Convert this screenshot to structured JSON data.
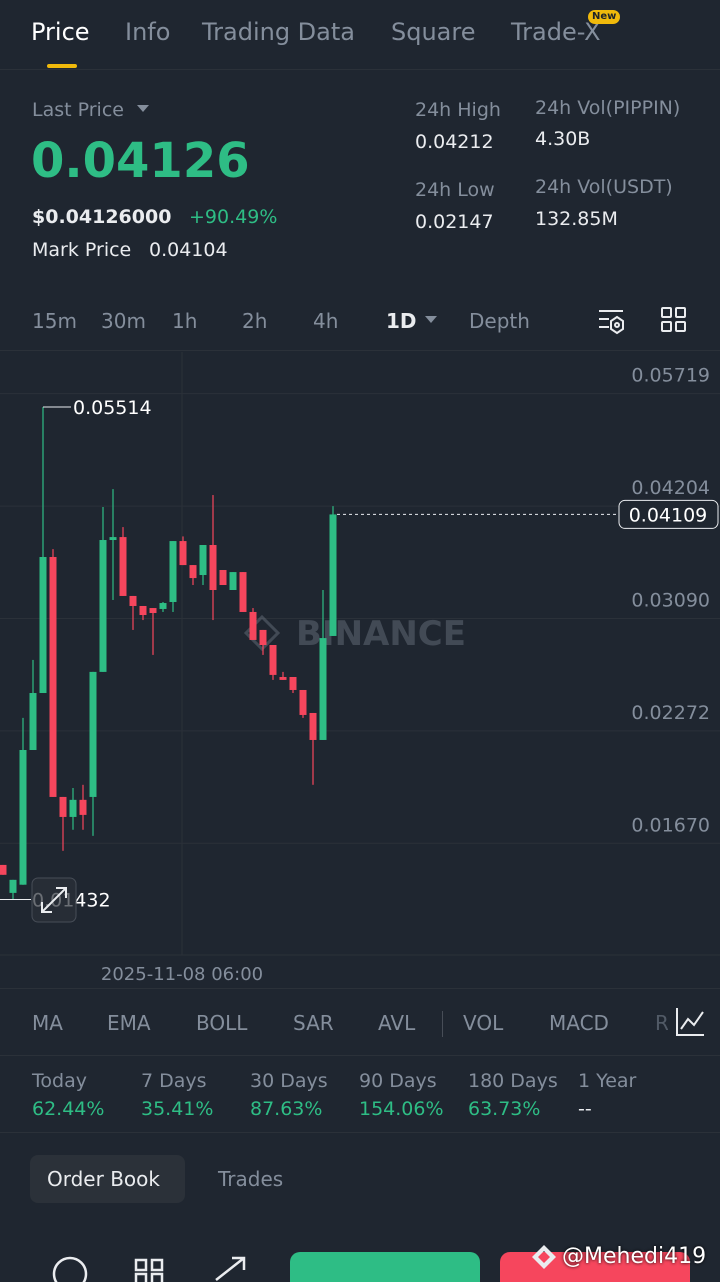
{
  "tabs": [
    "Price",
    "Info",
    "Trading Data",
    "Square",
    "Trade-X"
  ],
  "new_badge": "New",
  "ticker": {
    "last_price_label": "Last Price",
    "last_price": "0.04126",
    "usd_price": "$0.04126000",
    "change": "+90.49%",
    "mark_price_label": "Mark Price",
    "mark_price": "0.04104",
    "stats": [
      {
        "label": "24h High",
        "value": "0.04212"
      },
      {
        "label": "24h Vol(PIPPIN)",
        "value": "4.30B"
      },
      {
        "label": "24h Low",
        "value": "0.02147"
      },
      {
        "label": "24h Vol(USDT)",
        "value": "132.85M"
      }
    ]
  },
  "intervals": [
    "15m",
    "30m",
    "1h",
    "2h",
    "4h",
    "1D",
    "Depth"
  ],
  "chart_data": {
    "type": "candlestick",
    "log_scale": true,
    "grid": true,
    "up_color": "#2ebd85",
    "down_color": "#f6465d",
    "watermark": "BINANCE",
    "x_axis_label": "2025-11-08 06:00",
    "ylim": [
      0.0123,
      0.0641
    ],
    "yticks": [
      0.05719,
      0.04204,
      {
        "value": 0.0309,
        "label": "0.03090"
      },
      0.02272,
      {
        "value": 0.0167,
        "label": "0.01670"
      }
    ],
    "open": [
      0.01574,
      0.01458,
      0.01491,
      0.02156,
      0.0252,
      0.03657,
      0.01896,
      0.01795,
      0.01881,
      0.01896,
      0.0267,
      0.03831,
      0.03862,
      0.03287,
      0.03198,
      0.0318,
      0.03172,
      0.03233,
      0.0382,
      0.03577,
      0.03481,
      0.03779,
      0.03529,
      0.03341,
      0.03509,
      0.03146,
      0.02995,
      0.02874,
      0.02633,
      0.02633,
      0.02541,
      0.02386,
      0.02216,
      0.02946
    ],
    "high": [
      0.01574,
      0.01511,
      0.02354,
      0.02759,
      0.05514,
      0.03737,
      0.01896,
      0.01943,
      0.0196,
      0.0267,
      0.04193,
      0.04404,
      0.03969,
      0.03287,
      0.03198,
      0.0318,
      0.03233,
      0.0382,
      0.03869,
      0.03577,
      0.03779,
      0.04333,
      0.03529,
      0.03509,
      0.03509,
      0.0318,
      0.02995,
      0.02874,
      0.0267,
      0.02633,
      0.02541,
      0.02386,
      0.03341,
      0.04204
    ],
    "low": [
      0.01532,
      0.01432,
      0.01491,
      0.02156,
      0.0252,
      0.01896,
      0.01636,
      0.01733,
      0.01733,
      0.01704,
      0.0267,
      0.03251,
      0.03287,
      0.02995,
      0.03077,
      0.02797,
      0.03146,
      0.03146,
      0.03577,
      0.03387,
      0.03387,
      0.03077,
      0.03387,
      0.03341,
      0.03146,
      0.02914,
      0.02797,
      0.02612,
      0.02612,
      0.0252,
      0.02354,
      0.0196,
      0.02216,
      0.02946
    ],
    "close": [
      0.01532,
      0.01511,
      0.02156,
      0.0252,
      0.03657,
      0.01896,
      0.01795,
      0.01881,
      0.01805,
      0.0267,
      0.03831,
      0.03862,
      0.03287,
      0.03198,
      0.0312,
      0.03137,
      0.03224,
      0.0382,
      0.03577,
      0.03452,
      0.03779,
      0.03341,
      0.03387,
      0.03509,
      0.03146,
      0.02914,
      0.02874,
      0.02648,
      0.02612,
      0.02541,
      0.02373,
      0.02216,
      0.02929,
      0.04109
    ]
  },
  "indicators": [
    "MA",
    "EMA",
    "BOLL",
    "SAR",
    "AVL",
    "VOL",
    "MACD",
    "RSI"
  ],
  "performance": [
    {
      "label": "Today",
      "value": "62.44%"
    },
    {
      "label": "7 Days",
      "value": "35.41%"
    },
    {
      "label": "30 Days",
      "value": "87.63%"
    },
    {
      "label": "90 Days",
      "value": "154.06%"
    },
    {
      "label": "180 Days",
      "value": "63.73%"
    },
    {
      "label": "1 Year",
      "value": "--"
    }
  ],
  "order_tabs": [
    "Order Book",
    "Trades"
  ],
  "watermark": "@Mehedi419"
}
